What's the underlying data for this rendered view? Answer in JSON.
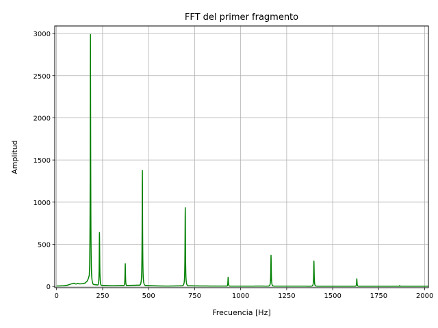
{
  "chart_data": {
    "type": "line",
    "title": "FFT del primer fragmento",
    "xlabel": "Frecuencia [Hz]",
    "ylabel": "Amplitud",
    "xlim": [
      -10,
      2020
    ],
    "ylim": [
      -15,
      3090
    ],
    "grid": true,
    "line_color": "#008000",
    "x_ticks": [
      0,
      250,
      500,
      750,
      1000,
      1250,
      1500,
      1750,
      2000
    ],
    "y_ticks": [
      0,
      500,
      1000,
      1500,
      2000,
      2500,
      3000
    ],
    "x_tick_labels": [
      "0",
      "250",
      "500",
      "750",
      "1000",
      "1250",
      "1500",
      "1750",
      "2000"
    ],
    "y_tick_labels": [
      "0",
      "500",
      "1000",
      "1500",
      "2000",
      "2500",
      "3000"
    ],
    "series": [
      {
        "baseline": [
          [
            0,
            5
          ],
          [
            40,
            8
          ],
          [
            60,
            15
          ],
          [
            80,
            30
          ],
          [
            95,
            38
          ],
          [
            105,
            28
          ],
          [
            115,
            36
          ],
          [
            125,
            30
          ],
          [
            140,
            32
          ],
          [
            155,
            40
          ],
          [
            165,
            60
          ],
          [
            172,
            90
          ],
          [
            180,
            150
          ],
          [
            195,
            25
          ],
          [
            210,
            20
          ],
          [
            250,
            12
          ],
          [
            300,
            8
          ],
          [
            350,
            10
          ],
          [
            400,
            12
          ],
          [
            450,
            15
          ],
          [
            500,
            10
          ],
          [
            550,
            6
          ],
          [
            600,
            4
          ],
          [
            650,
            6
          ],
          [
            700,
            8
          ],
          [
            800,
            5
          ],
          [
            900,
            4
          ],
          [
            1000,
            3
          ],
          [
            1100,
            4
          ],
          [
            1200,
            3
          ],
          [
            1300,
            3
          ],
          [
            1500,
            2
          ],
          [
            1700,
            2
          ],
          [
            1900,
            2
          ],
          [
            2020,
            2
          ]
        ],
        "peaks": [
          {
            "x": 184,
            "y": 2990
          },
          {
            "x": 233,
            "y": 640
          },
          {
            "x": 373,
            "y": 270
          },
          {
            "x": 466,
            "y": 1375
          },
          {
            "x": 699,
            "y": 935
          },
          {
            "x": 932,
            "y": 110
          },
          {
            "x": 1165,
            "y": 370
          },
          {
            "x": 1398,
            "y": 300
          },
          {
            "x": 1631,
            "y": 90
          },
          {
            "x": 1864,
            "y": 10
          }
        ]
      }
    ]
  }
}
